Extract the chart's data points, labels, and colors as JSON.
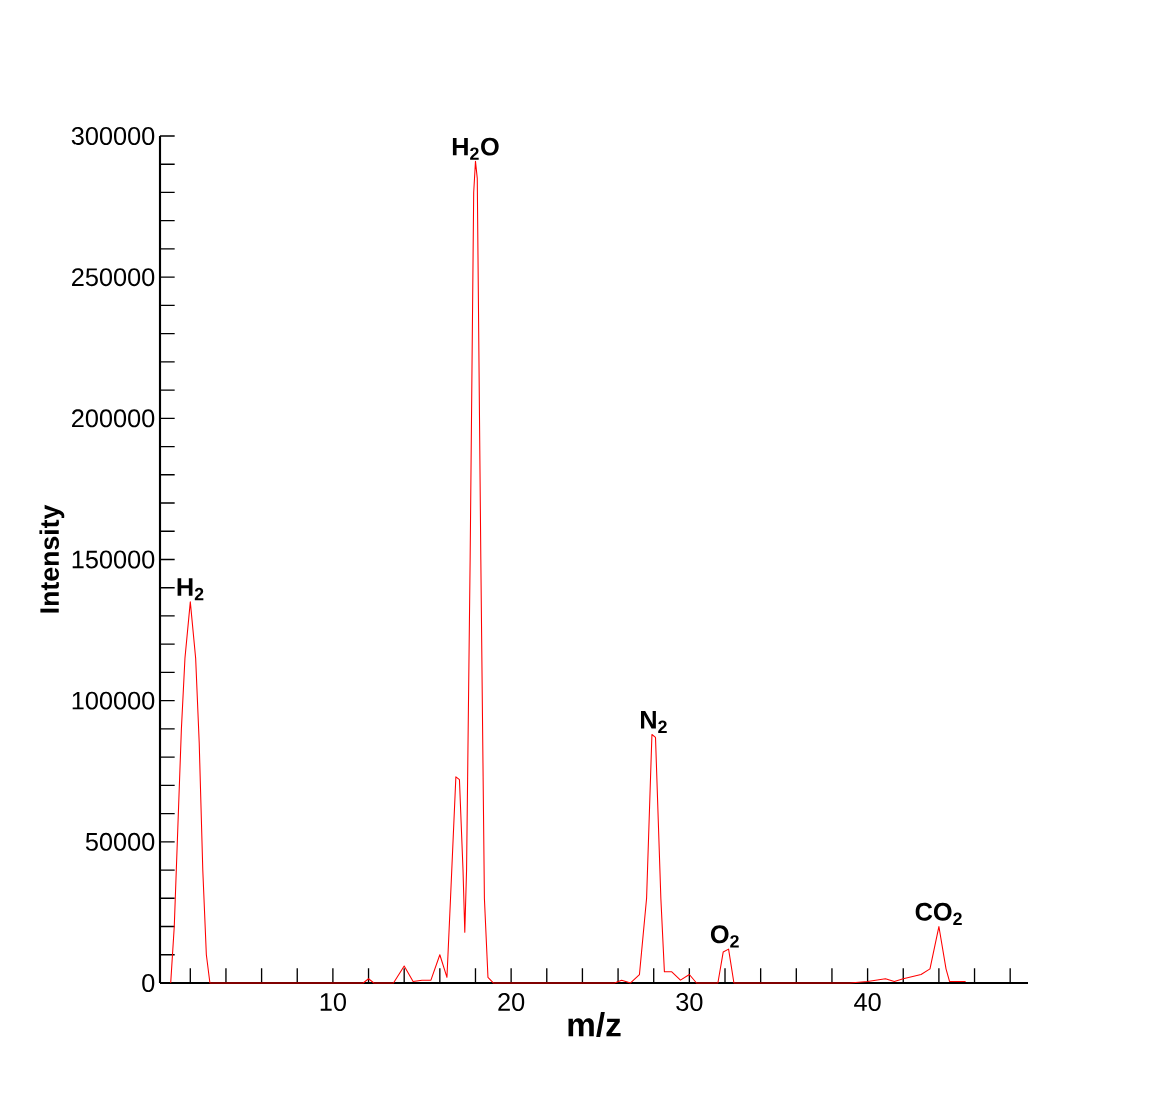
{
  "chart_data": {
    "type": "line",
    "xlabel": "m/z",
    "ylabel": "Intensity",
    "xlim": [
      0.3,
      49
    ],
    "ylim": [
      0,
      300000
    ],
    "xticks": [
      {
        "value": 2,
        "label": null
      },
      {
        "value": 4,
        "label": null
      },
      {
        "value": 6,
        "label": null
      },
      {
        "value": 8,
        "label": null
      },
      10,
      {
        "value": 12,
        "label": null
      },
      {
        "value": 14,
        "label": null
      },
      {
        "value": 16,
        "label": null
      },
      {
        "value": 18,
        "label": null
      },
      20,
      {
        "value": 22,
        "label": null
      },
      {
        "value": 24,
        "label": null
      },
      {
        "value": 26,
        "label": null
      },
      {
        "value": 28,
        "label": null
      },
      30,
      {
        "value": 32,
        "label": null
      },
      {
        "value": 34,
        "label": null
      },
      {
        "value": 36,
        "label": null
      },
      {
        "value": 38,
        "label": null
      },
      40,
      {
        "value": 42,
        "label": null
      },
      {
        "value": 44,
        "label": null
      },
      {
        "value": 46,
        "label": null
      },
      {
        "value": 48,
        "label": null
      }
    ],
    "yticks": [
      0,
      {
        "value": 10000,
        "label": null
      },
      {
        "value": 20000,
        "label": null
      },
      {
        "value": 30000,
        "label": null
      },
      {
        "value": 40000,
        "label": null
      },
      50000,
      {
        "value": 60000,
        "label": null
      },
      {
        "value": 70000,
        "label": null
      },
      {
        "value": 80000,
        "label": null
      },
      {
        "value": 90000,
        "label": null
      },
      100000,
      {
        "value": 110000,
        "label": null
      },
      {
        "value": 120000,
        "label": null
      },
      {
        "value": 130000,
        "label": null
      },
      {
        "value": 140000,
        "label": null
      },
      150000,
      {
        "value": 160000,
        "label": null
      },
      {
        "value": 170000,
        "label": null
      },
      {
        "value": 180000,
        "label": null
      },
      {
        "value": 190000,
        "label": null
      },
      200000,
      {
        "value": 210000,
        "label": null
      },
      {
        "value": 220000,
        "label": null
      },
      {
        "value": 230000,
        "label": null
      },
      {
        "value": 240000,
        "label": null
      },
      250000,
      {
        "value": 260000,
        "label": null
      },
      {
        "value": 270000,
        "label": null
      },
      {
        "value": 280000,
        "label": null
      },
      {
        "value": 290000,
        "label": null
      },
      300000
    ],
    "marker": "none",
    "line_style": "solid",
    "grid": false,
    "series": [
      {
        "color": "#ff0000",
        "x": [
          0.9,
          1.1,
          1.3,
          1.5,
          1.7,
          2.0,
          2.3,
          2.5,
          2.7,
          2.9,
          3.1,
          11.7,
          12.0,
          12.3,
          13.4,
          14.0,
          14.5,
          15.0,
          15.5,
          16.0,
          16.4,
          16.6,
          16.9,
          17.1,
          17.3,
          17.4,
          17.5,
          17.7,
          17.9,
          18.0,
          18.1,
          18.3,
          18.5,
          18.7,
          19.0,
          25.8,
          26.2,
          26.7,
          27.2,
          27.6,
          27.9,
          28.1,
          28.4,
          28.6,
          29.0,
          29.5,
          30.0,
          30.4,
          31.6,
          31.9,
          32.2,
          32.5,
          39.0,
          40.0,
          41.0,
          41.5,
          42.0,
          43.0,
          43.5,
          44.0,
          44.4,
          44.6,
          45.5
        ],
        "values": [
          0,
          20000,
          55000,
          90000,
          115000,
          135000,
          115000,
          85000,
          40000,
          10000,
          0,
          0,
          1500,
          0,
          0,
          6000,
          500,
          1000,
          1000,
          10000,
          2000,
          30000,
          73000,
          72000,
          40000,
          18000,
          40000,
          150000,
          280000,
          291000,
          285000,
          150000,
          30000,
          2000,
          0,
          0,
          1000,
          0,
          3000,
          30000,
          88000,
          87000,
          30000,
          4000,
          4000,
          1000,
          3000,
          0,
          0,
          11000,
          12000,
          0,
          0,
          500,
          1500,
          500,
          1500,
          3000,
          5000,
          20000,
          5000,
          500,
          500
        ]
      }
    ],
    "annotations": [
      {
        "text": "H$_{2}$",
        "x": 2,
        "y": 135000
      },
      {
        "text": "H$_{2}$O",
        "x": 18,
        "y": 291000
      },
      {
        "text": "N$_{2}$",
        "x": 28,
        "y": 88000
      },
      {
        "text": "O$_{2}$",
        "x": 32,
        "y": 12000
      },
      {
        "text": "CO$_{2}$",
        "x": 44,
        "y": 20000
      }
    ]
  }
}
